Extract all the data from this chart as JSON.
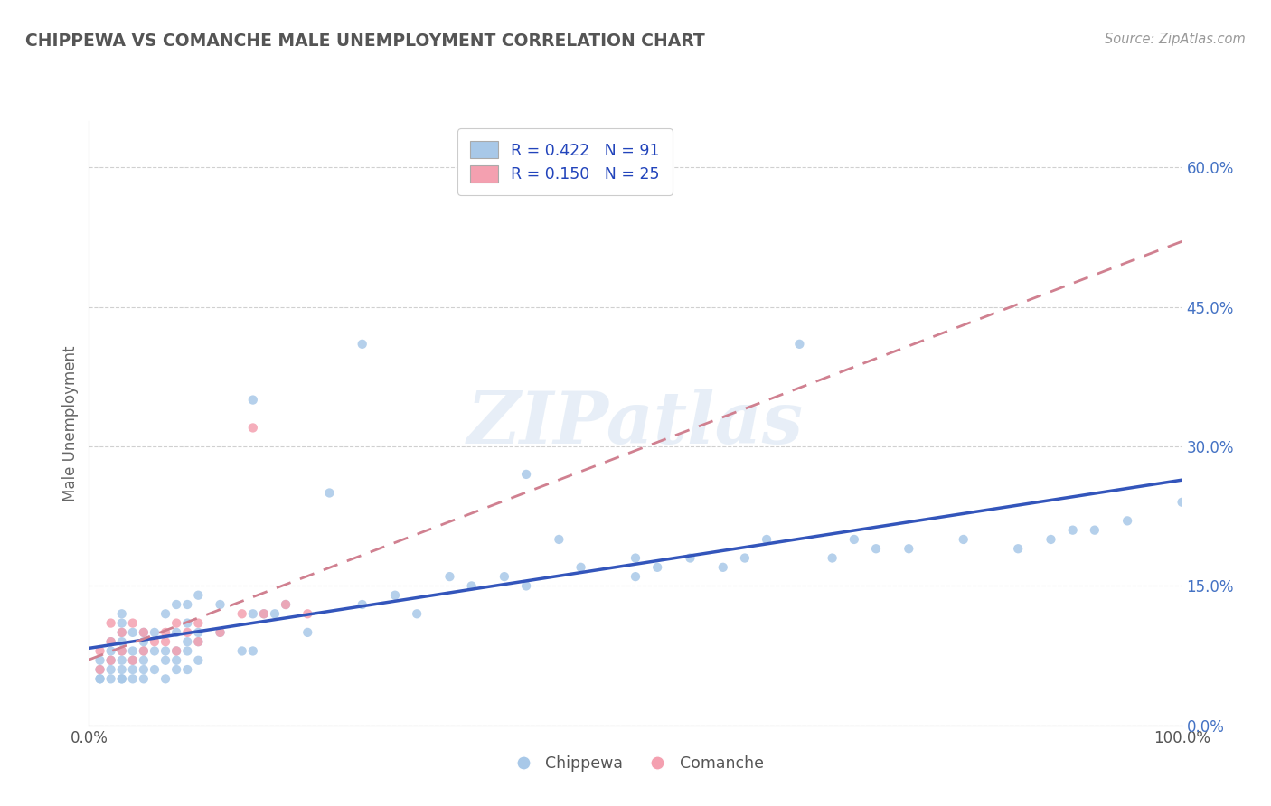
{
  "title": "CHIPPEWA VS COMANCHE MALE UNEMPLOYMENT CORRELATION CHART",
  "source": "Source: ZipAtlas.com",
  "ylabel": "Male Unemployment",
  "xlim": [
    0,
    100
  ],
  "ylim": [
    0,
    65
  ],
  "ytick_vals": [
    0,
    15,
    30,
    45,
    60
  ],
  "ytick_labels": [
    "0.0%",
    "15.0%",
    "30.0%",
    "45.0%",
    "60.0%"
  ],
  "xtick_vals": [
    0,
    100
  ],
  "xtick_labels": [
    "0.0%",
    "100.0%"
  ],
  "grid_color": "#d0d0d0",
  "background_color": "#ffffff",
  "chippewa_color": "#a8c8e8",
  "comanche_color": "#f4a0b0",
  "chippewa_line_color": "#3355bb",
  "comanche_line_color": "#d08090",
  "R_chippewa": 0.422,
  "N_chippewa": 91,
  "R_comanche": 0.15,
  "N_comanche": 25,
  "watermark": "ZIPatlas",
  "chip_x": [
    1,
    1,
    1,
    1,
    2,
    2,
    2,
    2,
    2,
    3,
    3,
    3,
    3,
    3,
    3,
    3,
    3,
    3,
    4,
    4,
    4,
    4,
    4,
    5,
    5,
    5,
    5,
    5,
    5,
    6,
    6,
    6,
    7,
    7,
    7,
    7,
    8,
    8,
    8,
    8,
    8,
    9,
    9,
    9,
    9,
    9,
    10,
    10,
    10,
    10,
    12,
    12,
    14,
    15,
    15,
    15,
    16,
    17,
    18,
    20,
    22,
    25,
    25,
    28,
    30,
    33,
    35,
    38,
    40,
    40,
    43,
    45,
    50,
    50,
    52,
    55,
    58,
    60,
    62,
    65,
    68,
    70,
    72,
    75,
    80,
    85,
    88,
    90,
    92,
    95,
    100
  ],
  "chip_y": [
    5,
    5,
    6,
    7,
    5,
    6,
    7,
    8,
    9,
    5,
    5,
    6,
    7,
    8,
    9,
    10,
    11,
    12,
    5,
    6,
    7,
    8,
    10,
    5,
    6,
    7,
    8,
    9,
    10,
    6,
    8,
    10,
    5,
    7,
    8,
    12,
    6,
    7,
    8,
    10,
    13,
    6,
    8,
    9,
    11,
    13,
    7,
    9,
    10,
    14,
    10,
    13,
    8,
    8,
    12,
    35,
    12,
    12,
    13,
    10,
    25,
    13,
    41,
    14,
    12,
    16,
    15,
    16,
    15,
    27,
    20,
    17,
    16,
    18,
    17,
    18,
    17,
    18,
    20,
    41,
    18,
    20,
    19,
    19,
    20,
    19,
    20,
    21,
    21,
    22,
    24
  ],
  "com_x": [
    1,
    1,
    2,
    2,
    2,
    3,
    3,
    4,
    4,
    5,
    5,
    6,
    7,
    7,
    8,
    8,
    9,
    10,
    10,
    12,
    14,
    15,
    16,
    18,
    20
  ],
  "com_y": [
    6,
    8,
    7,
    9,
    11,
    8,
    10,
    7,
    11,
    8,
    10,
    9,
    9,
    10,
    8,
    11,
    10,
    9,
    11,
    10,
    12,
    32,
    12,
    13,
    12
  ]
}
